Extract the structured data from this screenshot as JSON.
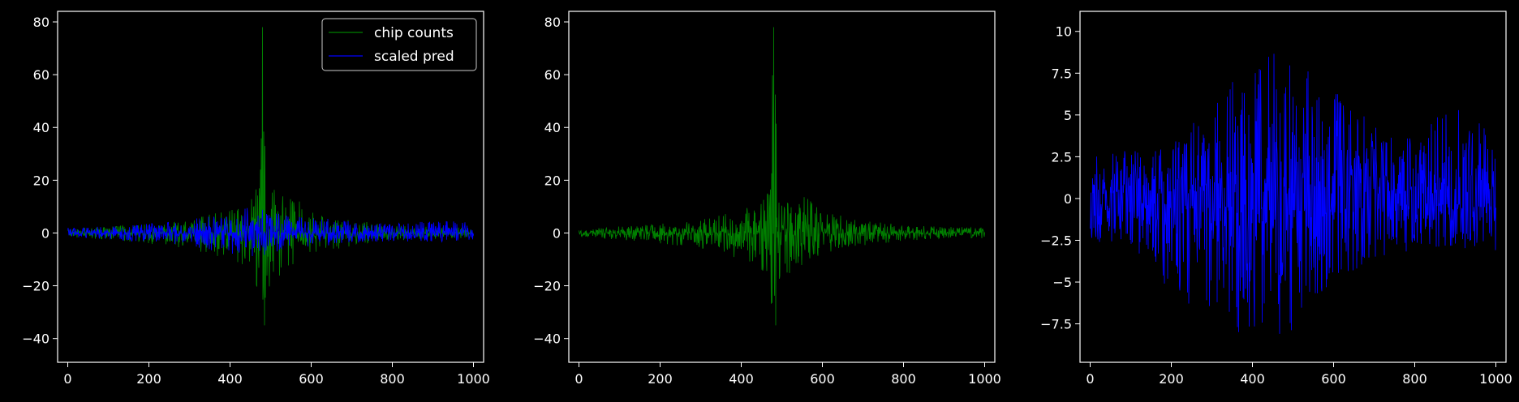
{
  "figure": {
    "background": "#000000",
    "axes_color": "#ffffff"
  },
  "chart_data": [
    {
      "type": "line",
      "title": "",
      "xlabel": "",
      "ylabel": "",
      "xlim": [
        -25,
        1025
      ],
      "ylim": [
        -49,
        84
      ],
      "xticks": [
        0,
        200,
        400,
        600,
        800,
        1000
      ],
      "yticks": [
        -40,
        -20,
        0,
        20,
        40,
        60,
        80
      ],
      "legend": {
        "placement": "top-right",
        "entries": [
          "chip counts",
          "scaled pred"
        ]
      },
      "series": [
        {
          "name": "chip counts",
          "color": "#008000",
          "x_range": [
            0,
            1000
          ],
          "envelope_x": [
            0,
            100,
            200,
            300,
            400,
            450,
            470,
            480,
            490,
            500,
            520,
            550,
            600,
            700,
            800,
            900,
            1000
          ],
          "envelope_upper": [
            1.5,
            2.5,
            3.5,
            5,
            9,
            12,
            21,
            78,
            20,
            16,
            17,
            15,
            8,
            5,
            3,
            2.5,
            2
          ],
          "envelope_lower": [
            -1.5,
            -2.5,
            -4,
            -6,
            -10,
            -14,
            -22,
            -43,
            -27,
            -18,
            -17,
            -13,
            -8,
            -5,
            -3,
            -2,
            -2
          ]
        },
        {
          "name": "scaled pred",
          "color": "#0000ff",
          "x_range": [
            0,
            1000
          ],
          "envelope_x": [
            0,
            100,
            200,
            300,
            350,
            400,
            450,
            500,
            550,
            600,
            700,
            800,
            900,
            1000
          ],
          "envelope_upper": [
            2,
            2.5,
            3.5,
            5,
            6.5,
            8,
            10,
            8,
            7,
            6,
            4.5,
            3.5,
            5,
            4
          ],
          "envelope_lower": [
            -2,
            -2.5,
            -3.5,
            -5,
            -6.5,
            -8,
            -9,
            -8,
            -7,
            -5.5,
            -4,
            -3,
            -3.5,
            -3
          ]
        }
      ]
    },
    {
      "type": "line",
      "title": "",
      "xlabel": "",
      "ylabel": "",
      "xlim": [
        -25,
        1025
      ],
      "ylim": [
        -49,
        84
      ],
      "xticks": [
        0,
        200,
        400,
        600,
        800,
        1000
      ],
      "yticks": [
        -40,
        -20,
        0,
        20,
        40,
        60,
        80
      ],
      "series": [
        {
          "color": "#008000",
          "x_range": [
            0,
            1000
          ],
          "envelope_x": [
            0,
            100,
            200,
            300,
            400,
            450,
            470,
            480,
            490,
            500,
            520,
            550,
            600,
            700,
            800,
            900,
            1000
          ],
          "envelope_upper": [
            1.5,
            2.5,
            3.5,
            5,
            9,
            12,
            21,
            78,
            20,
            16,
            17,
            15,
            8,
            5,
            3,
            2.5,
            2
          ],
          "envelope_lower": [
            -1.5,
            -2.5,
            -4,
            -6,
            -10,
            -14,
            -22,
            -43,
            -27,
            -18,
            -17,
            -13,
            -8,
            -5,
            -3,
            -2,
            -2
          ]
        }
      ]
    },
    {
      "type": "line",
      "title": "",
      "xlabel": "",
      "ylabel": "",
      "xlim": [
        -25,
        1025
      ],
      "ylim": [
        -9.8,
        11.2
      ],
      "xticks": [
        0,
        200,
        400,
        600,
        800,
        1000
      ],
      "yticks": [
        -7.5,
        -5.0,
        -2.5,
        0.0,
        2.5,
        5.0,
        7.5,
        10.0
      ],
      "series": [
        {
          "color": "#0000ff",
          "x_range": [
            0,
            1000
          ],
          "band_gap": [
            0.3,
            -0.3
          ],
          "envelope_x": [
            0,
            100,
            200,
            300,
            350,
            400,
            450,
            460,
            500,
            550,
            600,
            700,
            800,
            900,
            1000
          ],
          "envelope_upper": [
            2.5,
            3,
            3.5,
            5.5,
            7.5,
            7.5,
            9,
            10.2,
            8.5,
            7.5,
            6.5,
            4.5,
            3.5,
            6,
            4
          ],
          "envelope_lower": [
            -2.5,
            -3,
            -6,
            -7,
            -8,
            -8.5,
            -8,
            -9,
            -8,
            -6,
            -5,
            -4,
            -3,
            -3,
            -3.5
          ]
        }
      ]
    }
  ]
}
